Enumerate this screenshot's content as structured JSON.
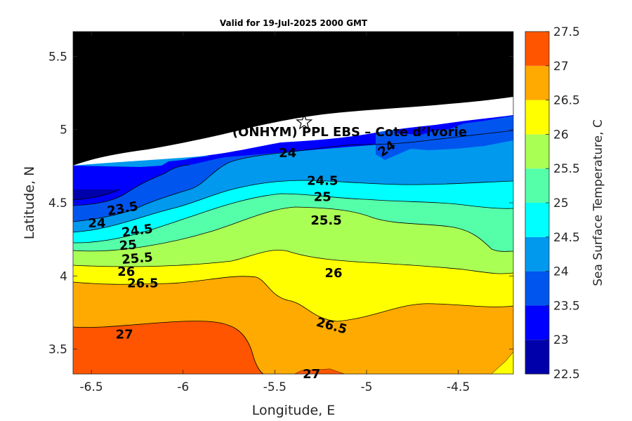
{
  "chart_data": {
    "type": "heatmap",
    "title": "Valid for 19-Jul-2025 2000 GMT",
    "xlabel": "Longitude, E",
    "ylabel": "Latitude, N",
    "colorbar_label": "Sea Surface Temperature, C",
    "xlim": [
      -6.6,
      -4.2
    ],
    "ylim": [
      3.33,
      5.67
    ],
    "x_ticks": [
      "-6.5",
      "-6",
      "-5.5",
      "-5",
      "-4.5"
    ],
    "y_ticks": [
      "3.5",
      "4",
      "4.5",
      "5",
      "5.5"
    ],
    "levels": [
      22.5,
      23,
      23.5,
      24,
      24.5,
      25,
      25.5,
      26,
      26.5,
      27,
      27.5
    ],
    "colorbar_ticks": [
      "22.5",
      "23",
      "23.5",
      "24",
      "24.5",
      "25",
      "25.5",
      "26",
      "26.5",
      "27",
      "27.5"
    ],
    "colors": [
      "#0000aa",
      "#0000ff",
      "#0055ee",
      "#0099ee",
      "#00ffff",
      "#55ffaa",
      "#aaff55",
      "#ffff00",
      "#ffaa00",
      "#ff5500"
    ],
    "annotation": "(ONHYM) PPL EBS  – Cote d’Ivorie",
    "marker": {
      "type": "star",
      "lon": -5.34,
      "lat": 5.05
    },
    "contour_labels": [
      {
        "text": "24",
        "lon": -5.43,
        "lat": 4.84,
        "rotate": 0
      },
      {
        "text": "24",
        "lon": -4.89,
        "lat": 4.87,
        "rotate": -35
      },
      {
        "text": "24.5",
        "lon": -5.24,
        "lat": 4.65,
        "rotate": 0
      },
      {
        "text": "25",
        "lon": -5.24,
        "lat": 4.54,
        "rotate": 0
      },
      {
        "text": "25.5",
        "lon": -5.22,
        "lat": 4.38,
        "rotate": 0
      },
      {
        "text": "23.5",
        "lon": -6.33,
        "lat": 4.46,
        "rotate": -10
      },
      {
        "text": "24",
        "lon": -6.47,
        "lat": 4.36,
        "rotate": 0
      },
      {
        "text": "24.5",
        "lon": -6.25,
        "lat": 4.31,
        "rotate": -8
      },
      {
        "text": "25",
        "lon": -6.3,
        "lat": 4.21,
        "rotate": -5
      },
      {
        "text": "25.5",
        "lon": -6.25,
        "lat": 4.12,
        "rotate": -5
      },
      {
        "text": "26",
        "lon": -6.31,
        "lat": 4.03,
        "rotate": 0
      },
      {
        "text": "26.5",
        "lon": -6.22,
        "lat": 3.95,
        "rotate": 0
      },
      {
        "text": "26",
        "lon": -5.18,
        "lat": 4.02,
        "rotate": 0
      },
      {
        "text": "26.5",
        "lon": -5.19,
        "lat": 3.66,
        "rotate": 15
      },
      {
        "text": "27",
        "lon": -6.32,
        "lat": 3.6,
        "rotate": 0
      },
      {
        "text": "27",
        "lon": -5.3,
        "lat": 3.33,
        "rotate": 0
      }
    ]
  }
}
